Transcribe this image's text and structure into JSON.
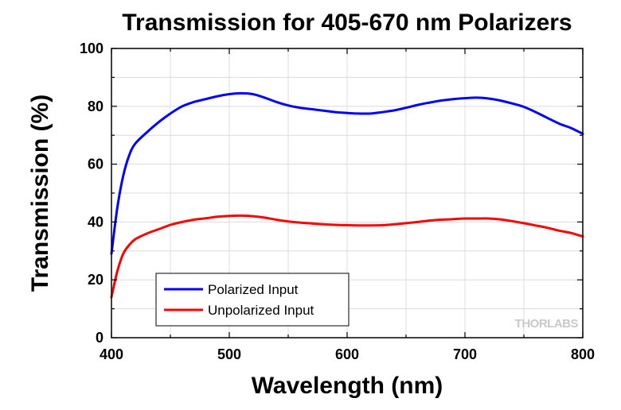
{
  "chart_data": {
    "type": "line",
    "title": "Transmission for 405-670 nm Polarizers",
    "xlabel": "Wavelength (nm)",
    "ylabel": "Transmission (%)",
    "xlim": [
      400,
      800
    ],
    "ylim": [
      0,
      100
    ],
    "x_ticks": [
      "400",
      "500",
      "600",
      "700",
      "800"
    ],
    "y_ticks": [
      "0",
      "20",
      "40",
      "60",
      "80",
      "100"
    ],
    "grid": true,
    "legend_position": "bottom-left",
    "watermark": "THORLABS",
    "series": [
      {
        "name": "Polarized Input",
        "color": "#0000ff",
        "x": [
          400,
          405,
          410,
          415,
          420,
          430,
          440,
          450,
          460,
          470,
          480,
          490,
          500,
          510,
          520,
          530,
          540,
          550,
          560,
          570,
          580,
          590,
          600,
          610,
          620,
          630,
          640,
          650,
          660,
          670,
          680,
          690,
          700,
          710,
          720,
          730,
          740,
          750,
          760,
          770,
          780,
          790,
          800
        ],
        "y": [
          29,
          45,
          56,
          63,
          67,
          71,
          74.5,
          77.5,
          80,
          81.5,
          82.5,
          83.5,
          84.2,
          84.5,
          84.2,
          83,
          81.5,
          80.3,
          79.5,
          79,
          78.5,
          78,
          77.7,
          77.5,
          77.5,
          78,
          78.6,
          79.5,
          80.5,
          81.3,
          82,
          82.5,
          82.8,
          83,
          82.7,
          82,
          81,
          79.8,
          78,
          76,
          74,
          72.5,
          70.5
        ]
      },
      {
        "name": "Unpolarized Input",
        "color": "#ff0000",
        "x": [
          400,
          405,
          410,
          415,
          420,
          430,
          440,
          450,
          460,
          470,
          480,
          490,
          500,
          510,
          520,
          530,
          540,
          550,
          560,
          570,
          580,
          590,
          600,
          610,
          620,
          630,
          640,
          650,
          660,
          670,
          680,
          690,
          700,
          710,
          720,
          730,
          740,
          750,
          760,
          770,
          780,
          790,
          800
        ],
        "y": [
          14,
          23,
          29,
          32,
          34,
          36,
          37.5,
          39,
          40,
          40.8,
          41.3,
          41.8,
          42.1,
          42.2,
          42,
          41.5,
          40.8,
          40.2,
          39.8,
          39.5,
          39.2,
          39,
          38.9,
          38.8,
          38.8,
          38.9,
          39.2,
          39.6,
          40,
          40.5,
          40.8,
          41,
          41.2,
          41.2,
          41.2,
          40.9,
          40.3,
          39.6,
          38.8,
          38,
          37,
          36.2,
          35
        ]
      }
    ]
  }
}
